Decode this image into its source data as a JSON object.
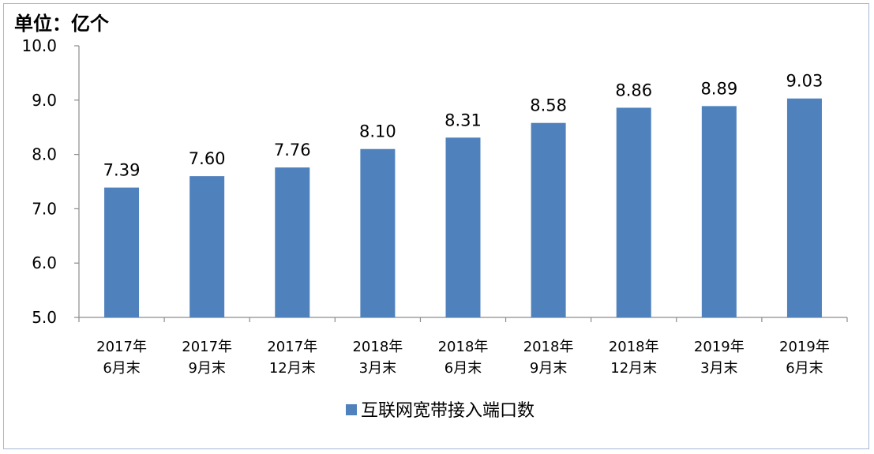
{
  "chart_data": {
    "type": "bar",
    "unit_label": "单位：亿个",
    "categories": [
      [
        "2017年",
        "6月末"
      ],
      [
        "2017年",
        "9月末"
      ],
      [
        "2017年",
        "12月末"
      ],
      [
        "2018年",
        "3月末"
      ],
      [
        "2018年",
        "6月末"
      ],
      [
        "2018年",
        "9月末"
      ],
      [
        "2018年",
        "12月末"
      ],
      [
        "2019年",
        "3月末"
      ],
      [
        "2019年",
        "6月末"
      ]
    ],
    "series": [
      {
        "name": "互联网宽带接入端口数",
        "values": [
          7.39,
          7.6,
          7.76,
          8.1,
          8.31,
          8.58,
          8.86,
          8.89,
          9.03
        ],
        "data_labels": [
          "7.39",
          "7.60",
          "7.76",
          "8.10",
          "8.31",
          "8.58",
          "8.86",
          "8.89",
          "9.03"
        ],
        "color": "#4f81bd"
      }
    ],
    "ylim": [
      5.0,
      10.0
    ],
    "yticks": [
      "5.0",
      "6.0",
      "7.0",
      "8.0",
      "9.0",
      "10.0"
    ],
    "grid": false,
    "legend_position": "bottom"
  }
}
